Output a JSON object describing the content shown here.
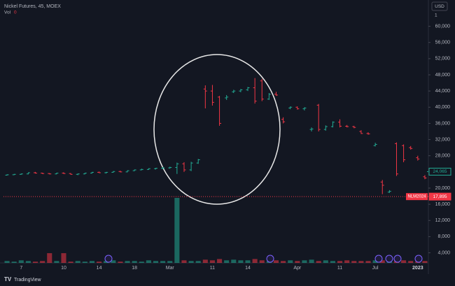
{
  "chart_data": {
    "type": "ohlc",
    "title": "Nickel Futures, 45, MOEX",
    "volume_legend": "Vol",
    "volume_legend_value": 0,
    "scale_unit": "USD",
    "scale_multiplier": 1,
    "brand": "TradingView",
    "up_color": "#22ab94",
    "down_color": "#f23645",
    "grid": false,
    "categories": [
      null,
      null,
      "7",
      null,
      null,
      null,
      null,
      null,
      "10",
      null,
      null,
      null,
      null,
      "14",
      null,
      null,
      null,
      null,
      "18",
      null,
      null,
      null,
      null,
      "Mar",
      null,
      null,
      null,
      null,
      null,
      "11",
      null,
      null,
      null,
      null,
      "14",
      null,
      null,
      null,
      null,
      null,
      null,
      "Apr",
      null,
      null,
      null,
      null,
      null,
      "11",
      null,
      null,
      null,
      null,
      "Jul",
      null,
      null,
      null,
      null,
      null,
      "2023",
      null
    ],
    "open": [
      23200,
      23300,
      23400,
      23500,
      23800,
      23700,
      23600,
      23500,
      23700,
      23600,
      23400,
      23500,
      23700,
      23900,
      23800,
      23900,
      24100,
      24000,
      24300,
      24500,
      24600,
      24800,
      24900,
      25000,
      25100,
      26000,
      24500,
      26200,
      44500,
      44000,
      42500,
      42300,
      43800,
      44000,
      44300,
      44800,
      46500,
      42000,
      43200,
      37000,
      39800,
      40000,
      39600,
      34500,
      40500,
      34500,
      35200,
      36300,
      35300,
      35200,
      34000,
      33500,
      30500,
      21500,
      19000,
      31000,
      30500,
      30000,
      27500,
      22800
    ],
    "high": [
      23400,
      23500,
      23600,
      23900,
      24000,
      23800,
      23700,
      23800,
      23900,
      23700,
      23600,
      23800,
      24000,
      24100,
      24000,
      24200,
      24300,
      24400,
      24600,
      24800,
      24900,
      25000,
      25200,
      25300,
      26300,
      26400,
      26500,
      27200,
      45400,
      45500,
      42800,
      43000,
      44300,
      44500,
      45000,
      47200,
      47000,
      43500,
      43800,
      37500,
      40200,
      40200,
      40000,
      35000,
      40800,
      35500,
      36500,
      37000,
      35600,
      35400,
      34300,
      33800,
      31200,
      22000,
      19500,
      31300,
      30800,
      30400,
      28000,
      23200
    ],
    "low": [
      23100,
      23200,
      23300,
      23400,
      23600,
      23500,
      23400,
      23400,
      23500,
      23300,
      23200,
      23400,
      23600,
      23700,
      23600,
      23800,
      23900,
      23900,
      24200,
      24400,
      24500,
      24600,
      24700,
      24800,
      23500,
      24000,
      24200,
      26000,
      39700,
      40400,
      35400,
      41800,
      43500,
      43700,
      44000,
      40900,
      41500,
      41800,
      42800,
      36000,
      39500,
      39400,
      39200,
      34000,
      34000,
      34200,
      35000,
      35000,
      35000,
      34800,
      33400,
      33200,
      30300,
      18500,
      18800,
      23000,
      26400,
      29500,
      26800,
      22200
    ],
    "close": [
      23300,
      23400,
      23500,
      23800,
      23700,
      23600,
      23500,
      23700,
      23600,
      23400,
      23500,
      23700,
      23900,
      23800,
      23900,
      24100,
      24000,
      24300,
      24500,
      24600,
      24800,
      24900,
      25000,
      25100,
      26000,
      24500,
      26200,
      27000,
      44000,
      41200,
      36000,
      42500,
      44000,
      44300,
      44800,
      41500,
      42000,
      43200,
      43000,
      36400,
      40000,
      39600,
      39800,
      34600,
      34500,
      35200,
      36300,
      35300,
      35200,
      35000,
      33500,
      33400,
      30800,
      20700,
      19200,
      23500,
      27000,
      29800,
      27200,
      22500
    ],
    "volume": [
      3,
      2,
      4,
      3,
      2,
      3,
      15,
      3,
      15,
      2,
      3,
      2,
      3,
      2,
      3,
      4,
      2,
      3,
      3,
      2,
      4,
      3,
      3,
      3,
      100,
      4,
      3,
      3,
      5,
      4,
      6,
      4,
      5,
      4,
      4,
      6,
      4,
      3,
      4,
      3,
      4,
      3,
      4,
      5,
      3,
      4,
      3,
      3,
      4,
      3,
      3,
      3,
      4,
      4,
      3,
      4,
      4,
      3,
      3,
      3
    ],
    "vlim": [
      0,
      100
    ],
    "ylim": [
      1500,
      66500
    ],
    "yticks": [
      {
        "value": 4000,
        "label": "4,000"
      },
      {
        "value": 8000,
        "label": "8,000"
      },
      {
        "value": 12000,
        "label": "12,000"
      },
      {
        "value": 16000,
        "label": "16,000"
      },
      {
        "value": 20000,
        "label": "20,000"
      },
      {
        "value": 28000,
        "label": "28,000"
      },
      {
        "value": 32000,
        "label": "32,000"
      },
      {
        "value": 36000,
        "label": "36,000"
      },
      {
        "value": 40000,
        "label": "40,000"
      },
      {
        "value": 44000,
        "label": "44,000"
      },
      {
        "value": 48000,
        "label": "48,000"
      },
      {
        "value": 52000,
        "label": "52,000"
      },
      {
        "value": 56000,
        "label": "56,000"
      },
      {
        "value": 60000,
        "label": "60,000"
      }
    ],
    "price_labels": [
      {
        "value": 24065,
        "label": "24,065",
        "color": "#22ab94"
      },
      {
        "name": "NLM2024",
        "value": 17895,
        "label": "17,895",
        "color": "#f23645"
      }
    ]
  }
}
